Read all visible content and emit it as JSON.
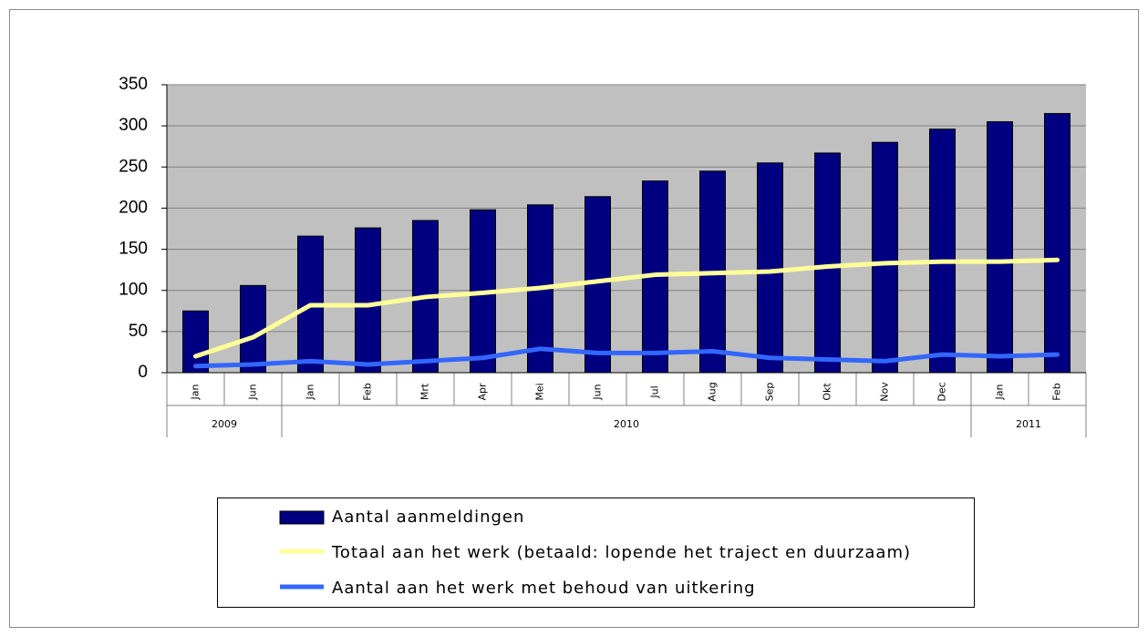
{
  "chart_data": {
    "type": "bar",
    "categories": [
      "Jan",
      "Jun",
      "Jan",
      "Feb",
      "Mrt",
      "Apr",
      "Mei",
      "Jun",
      "Jul",
      "Aug",
      "Sep",
      "Okt",
      "Nov",
      "Dec",
      "Jan",
      "Feb"
    ],
    "years": [
      "2009",
      "2009",
      "2010",
      "2010",
      "2010",
      "2010",
      "2010",
      "2010",
      "2010",
      "2010",
      "2010",
      "2010",
      "2010",
      "2010",
      "2011",
      "2011"
    ],
    "series": [
      {
        "name": "Aantal aanmeldingen",
        "type": "bar",
        "color": "#000080",
        "values": [
          75,
          106,
          166,
          176,
          185,
          198,
          204,
          214,
          233,
          245,
          255,
          267,
          280,
          296,
          305,
          315
        ]
      },
      {
        "name": "Totaal aan het werk (betaald: lopende het traject en duurzaam)",
        "type": "line",
        "color": "#ffff99",
        "values": [
          20,
          43,
          82,
          82,
          92,
          97,
          103,
          111,
          119,
          121,
          123,
          129,
          133,
          135,
          135,
          137
        ]
      },
      {
        "name": "Aantal aan het werk met behoud van uitkering",
        "type": "line",
        "color": "#3366ff",
        "values": [
          8,
          10,
          14,
          10,
          14,
          18,
          29,
          24,
          24,
          26,
          18,
          16,
          14,
          22,
          20,
          22
        ]
      }
    ],
    "ylim": [
      0,
      350
    ],
    "yticks": [
      0,
      50,
      100,
      150,
      200,
      250,
      300,
      350
    ],
    "grid": true,
    "plot_background": "#c0c0c0"
  }
}
